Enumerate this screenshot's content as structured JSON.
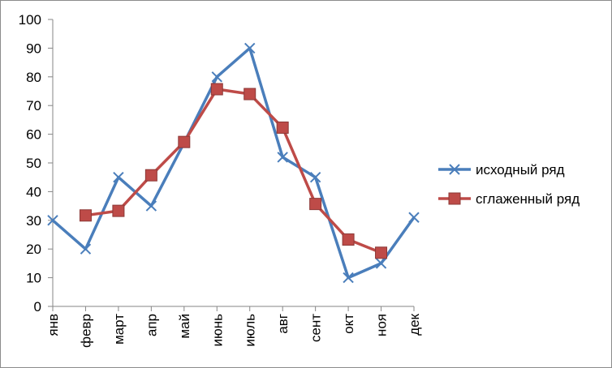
{
  "chart_data": {
    "type": "line",
    "categories": [
      "янв",
      "февр",
      "март",
      "апр",
      "май",
      "июнь",
      "июль",
      "авг",
      "сент",
      "окт",
      "ноя",
      "дек"
    ],
    "series": [
      {
        "name": "исходный ряд",
        "color": "#4A7EBB",
        "marker": "x",
        "values": [
          30,
          20,
          45,
          35,
          57,
          80,
          90,
          52,
          45,
          10,
          15,
          31
        ]
      },
      {
        "name": "сглаженный ряд",
        "color": "#BE4B48",
        "marker": "square",
        "values": [
          null,
          31.7,
          33.3,
          45.7,
          57.3,
          75.7,
          74,
          62.3,
          35.7,
          23.3,
          18.7,
          null
        ]
      }
    ],
    "ylim": [
      0,
      100
    ],
    "ytick_step": 10,
    "grid": false,
    "legend": "right",
    "title": "",
    "xlabel": "",
    "ylabel": ""
  }
}
